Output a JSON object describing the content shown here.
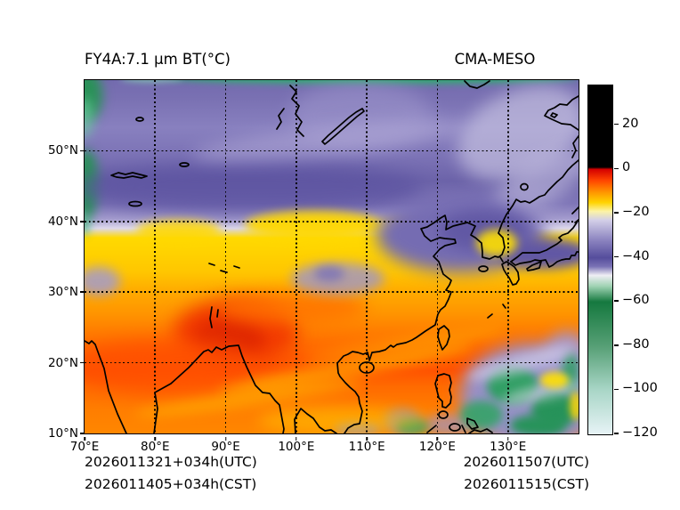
{
  "titles": {
    "left": "FY4A:7.1 μm BT(°C)",
    "right": "CMA-MESO"
  },
  "footer": {
    "init_utc": "2026011321+034h(UTC)",
    "init_cst": "2026011405+034h(CST)",
    "obs_utc": "2026011507(UTC)",
    "obs_cst": "2026011515(CST)"
  },
  "chart_data": {
    "type": "heatmap",
    "title": "FY4A:7.1 μm BT(°C)",
    "model_label": "CMA-MESO",
    "field": "FY4A 7.1 μm water-vapor channel brightness temperature (°C) over East Asia, CMA-MESO comparison panel",
    "lon_range": [
      70,
      140
    ],
    "lat_range": [
      10,
      60
    ],
    "grid": {
      "style": "dotted",
      "color": "#000000"
    },
    "x_ticks": [
      {
        "value": 70,
        "label": "70°E"
      },
      {
        "value": 80,
        "label": "80°E"
      },
      {
        "value": 90,
        "label": "90°E"
      },
      {
        "value": 100,
        "label": "100°E"
      },
      {
        "value": 110,
        "label": "110°E"
      },
      {
        "value": 120,
        "label": "120°E"
      },
      {
        "value": 130,
        "label": "130°E"
      }
    ],
    "y_ticks": [
      {
        "value": 10,
        "label": "10°N"
      },
      {
        "value": 20,
        "label": "20°N"
      },
      {
        "value": 30,
        "label": "30°N"
      },
      {
        "value": 40,
        "label": "40°N"
      },
      {
        "value": 50,
        "label": "50°N"
      }
    ],
    "colorbar": {
      "vmin": -120,
      "vmax": 38,
      "ticks": [
        {
          "value": 20,
          "label": "20"
        },
        {
          "value": 0,
          "label": "0"
        },
        {
          "value": -20,
          "label": "−20"
        },
        {
          "value": -40,
          "label": "−40"
        },
        {
          "value": -60,
          "label": "−60"
        },
        {
          "value": -80,
          "label": "−80"
        },
        {
          "value": -100,
          "label": "−100"
        },
        {
          "value": -120,
          "label": "−120"
        }
      ],
      "stops": [
        {
          "value": 38,
          "color": "#000000"
        },
        {
          "value": 1,
          "color": "#000000"
        },
        {
          "value": 0,
          "color": "#d40000"
        },
        {
          "value": -5,
          "color": "#ff4400"
        },
        {
          "value": -10,
          "color": "#ff9000"
        },
        {
          "value": -15,
          "color": "#ffd300"
        },
        {
          "value": -19,
          "color": "#fcf3a6"
        },
        {
          "value": -23,
          "color": "#d3cfe8"
        },
        {
          "value": -32,
          "color": "#8c84c0"
        },
        {
          "value": -40,
          "color": "#554d9c"
        },
        {
          "value": -44,
          "color": "#7a72b5"
        },
        {
          "value": -48,
          "color": "#efeef4"
        },
        {
          "value": -53,
          "color": "#9ed2b2"
        },
        {
          "value": -60,
          "color": "#15793f"
        },
        {
          "value": -80,
          "color": "#569f75"
        },
        {
          "value": -100,
          "color": "#a9d6c7"
        },
        {
          "value": -120,
          "color": "#e7f3f6"
        }
      ]
    },
    "regions": [
      {
        "area": "40–60°N band across map",
        "approx_bt_c": -35,
        "appearance": "slate purple with lavender cirrus streaks"
      },
      {
        "area": "west edge 70–72°E, 40–58°N",
        "approx_bt_c": -60,
        "appearance": "green cold cloud tops"
      },
      {
        "area": "top edge strip ~58–60°N",
        "approx_bt_c": -55,
        "appearance": "thin green strip"
      },
      {
        "area": "35–40°N zonal band",
        "approx_bt_c": -17,
        "appearance": "yellow transition band with bright patches near 100–110°E"
      },
      {
        "area": "Bohai/Korea/Japan 33–42°N, 113–140°E",
        "approx_bt_c": -32,
        "appearance": "purple moist tongue over coastlines"
      },
      {
        "area": "20–32°N subtropics",
        "approx_bt_c": -6,
        "appearance": "orange dry zone"
      },
      {
        "area": "NE India / Bay of Bengal head ~85–95°E, 20–27°N",
        "approx_bt_c": 0,
        "appearance": "deep red-orange warm maximum"
      },
      {
        "area": "Philippine Sea 10–22°N, 115–140°E",
        "approx_bt_c": -45,
        "appearance": "purple cloud mass with dark-green convective cells and yellow gaps"
      },
      {
        "area": "10–18°N remainder",
        "approx_bt_c": -8,
        "appearance": "orange with pale yellow streaks"
      }
    ]
  }
}
